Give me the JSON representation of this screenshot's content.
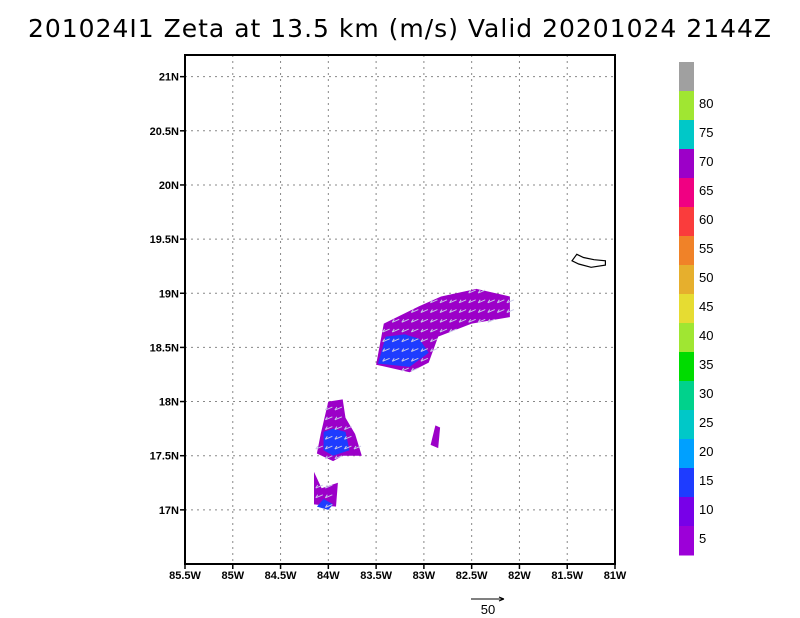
{
  "chart_data": {
    "type": "heatmap",
    "title": "201024I1 Zeta at 13.5 km (m/s) Valid 20201024 2144Z",
    "x_ticks": [
      "85.5W",
      "85W",
      "84.5W",
      "84W",
      "83.5W",
      "83W",
      "82.5W",
      "82W",
      "81.5W",
      "81W"
    ],
    "x_values": [
      -85.5,
      -85,
      -84.5,
      -84,
      -83.5,
      -83,
      -82.5,
      -82,
      -81.5,
      -81
    ],
    "y_ticks": [
      "17N",
      "17.5N",
      "18N",
      "18.5N",
      "19N",
      "19.5N",
      "20N",
      "20.5N",
      "21N"
    ],
    "y_values": [
      17,
      17.5,
      18,
      18.5,
      19,
      19.5,
      20,
      20.5,
      21
    ],
    "xlim": [
      -85.5,
      -81
    ],
    "ylim": [
      16.5,
      21.2
    ],
    "grid": true,
    "colorbar": {
      "labels": [
        "5",
        "10",
        "15",
        "20",
        "25",
        "30",
        "35",
        "40",
        "45",
        "50",
        "55",
        "60",
        "65",
        "70",
        "75",
        "80"
      ],
      "colors": [
        "#9c00d8",
        "#7800e8",
        "#1e3cff",
        "#00a0ff",
        "#00c8c8",
        "#00d28c",
        "#00dc00",
        "#a0e632",
        "#e6dc32",
        "#e6af2d",
        "#f08228",
        "#fa3c3c",
        "#f00082",
        "#9c00c8",
        "#00c8c8",
        "#a0e632",
        "#a0a0a0"
      ]
    },
    "reference_vector_label": "50",
    "regions": [
      {
        "name": "northeast-band",
        "color": "#9c00c8",
        "points": [
          [
            -83.5,
            18.34
          ],
          [
            -83.42,
            18.72
          ],
          [
            -83.05,
            18.88
          ],
          [
            -82.82,
            18.97
          ],
          [
            -82.45,
            19.04
          ],
          [
            -82.1,
            18.97
          ],
          [
            -82.1,
            18.78
          ],
          [
            -82.5,
            18.72
          ],
          [
            -82.85,
            18.6
          ],
          [
            -82.95,
            18.36
          ],
          [
            -83.15,
            18.27
          ],
          [
            -83.5,
            18.34
          ]
        ]
      },
      {
        "name": "northeast-core",
        "color": "#1e3cff",
        "points": [
          [
            -83.48,
            18.35
          ],
          [
            -83.4,
            18.6
          ],
          [
            -83.2,
            18.62
          ],
          [
            -83.05,
            18.58
          ],
          [
            -82.95,
            18.45
          ],
          [
            -83.15,
            18.32
          ],
          [
            -83.48,
            18.35
          ]
        ]
      },
      {
        "name": "small-cell",
        "color": "#9c00c8",
        "points": [
          [
            -82.93,
            17.6
          ],
          [
            -82.88,
            17.78
          ],
          [
            -82.83,
            17.76
          ],
          [
            -82.85,
            17.57
          ],
          [
            -82.93,
            17.6
          ]
        ]
      },
      {
        "name": "west-cell",
        "color": "#9c00c8",
        "points": [
          [
            -84.08,
            17.7
          ],
          [
            -84.0,
            18.0
          ],
          [
            -83.85,
            18.02
          ],
          [
            -83.82,
            17.85
          ],
          [
            -83.72,
            17.7
          ],
          [
            -83.65,
            17.5
          ],
          [
            -83.85,
            17.5
          ],
          [
            -83.95,
            17.45
          ],
          [
            -84.12,
            17.52
          ],
          [
            -84.08,
            17.7
          ]
        ]
      },
      {
        "name": "west-core",
        "color": "#1e3cff",
        "points": [
          [
            -84.05,
            17.72
          ],
          [
            -83.95,
            17.75
          ],
          [
            -83.82,
            17.72
          ],
          [
            -83.78,
            17.55
          ],
          [
            -83.95,
            17.5
          ],
          [
            -84.05,
            17.55
          ],
          [
            -84.05,
            17.72
          ]
        ]
      },
      {
        "name": "southwest-cell",
        "color": "#9c00c8",
        "points": [
          [
            -84.15,
            17.05
          ],
          [
            -84.15,
            17.35
          ],
          [
            -84.07,
            17.2
          ],
          [
            -83.9,
            17.25
          ],
          [
            -83.92,
            17.03
          ],
          [
            -84.15,
            17.05
          ]
        ]
      },
      {
        "name": "southwest-core",
        "color": "#1e3cff",
        "points": [
          [
            -84.12,
            17.03
          ],
          [
            -84.05,
            17.1
          ],
          [
            -83.95,
            17.05
          ],
          [
            -84.0,
            17.0
          ],
          [
            -84.12,
            17.03
          ]
        ]
      }
    ],
    "island": [
      [
        -81.45,
        19.3
      ],
      [
        -81.4,
        19.36
      ],
      [
        -81.33,
        19.33
      ],
      [
        -81.22,
        19.31
      ],
      [
        -81.1,
        19.3
      ],
      [
        -81.1,
        19.26
      ],
      [
        -81.25,
        19.24
      ],
      [
        -81.38,
        19.27
      ],
      [
        -81.45,
        19.3
      ]
    ]
  }
}
